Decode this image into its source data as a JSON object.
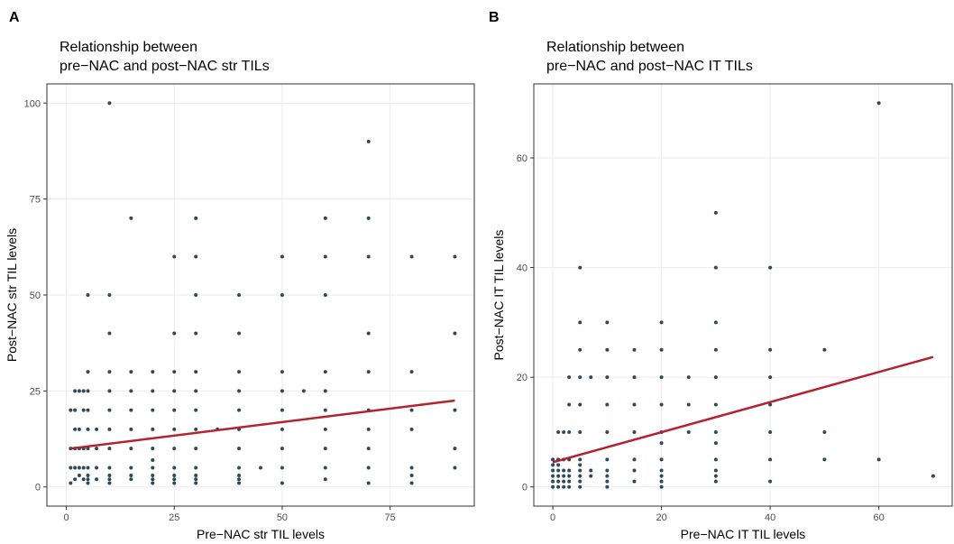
{
  "chart_data": [
    {
      "type": "scatter",
      "panel": "A",
      "title": [
        "Relationship between",
        "pre−NAC and post−NAC str TILs"
      ],
      "x_label": "Pre−NAC str TIL levels",
      "y_label": "Post−NAC str TIL levels",
      "color": "#2b4b5c",
      "grid": true,
      "xlim": [
        -4.5,
        94.5
      ],
      "ylim": [
        -5,
        105
      ],
      "xticks": [
        0,
        25,
        50,
        75
      ],
      "yticks": [
        0,
        25,
        50,
        75,
        100
      ],
      "x": [
        1,
        1,
        1,
        1,
        2,
        2,
        2,
        2,
        2,
        2,
        3,
        3,
        3,
        3,
        3,
        4,
        4,
        4,
        4,
        4,
        5,
        5,
        5,
        5,
        5,
        5,
        5,
        5,
        5,
        5,
        7,
        7,
        7,
        7,
        10,
        10,
        10,
        10,
        10,
        10,
        10,
        10,
        10,
        10,
        10,
        10,
        15,
        15,
        15,
        15,
        15,
        15,
        15,
        15,
        15,
        20,
        20,
        20,
        20,
        20,
        20,
        20,
        20,
        20,
        20,
        25,
        25,
        25,
        25,
        25,
        25,
        25,
        25,
        25,
        25,
        25,
        30,
        30,
        30,
        30,
        30,
        30,
        30,
        30,
        30,
        30,
        30,
        30,
        30,
        35,
        40,
        40,
        40,
        40,
        40,
        40,
        40,
        40,
        40,
        40,
        40,
        45,
        50,
        50,
        50,
        50,
        50,
        50,
        50,
        50,
        50,
        55,
        60,
        60,
        60,
        60,
        60,
        60,
        60,
        60,
        60,
        60,
        70,
        70,
        70,
        70,
        70,
        70,
        70,
        70,
        70,
        70,
        80,
        80,
        80,
        80,
        80,
        80,
        80,
        90,
        90,
        90,
        90,
        90
      ],
      "values": [
        1,
        5,
        10,
        20,
        2,
        5,
        10,
        15,
        20,
        25,
        3,
        5,
        10,
        15,
        25,
        2,
        5,
        10,
        20,
        25,
        1,
        2,
        3,
        5,
        10,
        15,
        20,
        25,
        30,
        50,
        2,
        5,
        10,
        15,
        1,
        2,
        3,
        5,
        10,
        15,
        20,
        25,
        30,
        40,
        50,
        100,
        2,
        3,
        5,
        10,
        15,
        20,
        25,
        30,
        70,
        1,
        2,
        3,
        5,
        7,
        10,
        15,
        20,
        25,
        30,
        1,
        2,
        3,
        5,
        10,
        15,
        20,
        25,
        30,
        40,
        60,
        1,
        2,
        3,
        5,
        10,
        15,
        20,
        25,
        30,
        40,
        50,
        60,
        70,
        15,
        1,
        2,
        3,
        5,
        10,
        15,
        20,
        25,
        30,
        40,
        50,
        5,
        1,
        5,
        10,
        15,
        20,
        25,
        30,
        50,
        60,
        25,
        2,
        5,
        10,
        15,
        20,
        25,
        30,
        50,
        60,
        70,
        1,
        5,
        10,
        15,
        20,
        30,
        40,
        60,
        70,
        90,
        1,
        3,
        5,
        15,
        20,
        30,
        60,
        5,
        10,
        20,
        40,
        60
      ],
      "trend": {
        "color": "#b5222f",
        "x": [
          1,
          90
        ],
        "y": [
          10,
          22.5
        ]
      }
    },
    {
      "type": "scatter",
      "panel": "B",
      "title": [
        "Relationship between",
        "pre−NAC and post−NAC IT TILs"
      ],
      "x_label": "Pre−NAC IT TIL levels",
      "y_label": "Post−NAC IT TIL levels",
      "color": "#2b4b5c",
      "grid": true,
      "xlim": [
        -3.5,
        73.5
      ],
      "ylim": [
        -3.5,
        73.5
      ],
      "xticks": [
        0,
        20,
        40,
        60
      ],
      "yticks": [
        0,
        20,
        40,
        60
      ],
      "x": [
        0,
        0,
        0,
        0,
        0,
        0,
        1,
        1,
        1,
        1,
        1,
        1,
        1,
        2,
        2,
        2,
        2,
        2,
        2,
        3,
        3,
        3,
        3,
        3,
        3,
        3,
        3,
        5,
        5,
        5,
        5,
        5,
        5,
        5,
        5,
        5,
        5,
        5,
        5,
        7,
        7,
        7,
        10,
        10,
        10,
        10,
        10,
        10,
        10,
        10,
        10,
        10,
        15,
        15,
        15,
        15,
        15,
        15,
        15,
        20,
        20,
        20,
        20,
        20,
        20,
        20,
        20,
        20,
        20,
        20,
        25,
        25,
        25,
        30,
        30,
        30,
        30,
        30,
        30,
        30,
        30,
        30,
        30,
        30,
        30,
        40,
        40,
        40,
        40,
        40,
        40,
        40,
        50,
        50,
        50,
        60,
        60,
        70
      ],
      "values": [
        0,
        1,
        2,
        3,
        4,
        5,
        0,
        1,
        2,
        3,
        4,
        5,
        10,
        0,
        1,
        2,
        3,
        5,
        10,
        0,
        1,
        2,
        3,
        5,
        10,
        15,
        20,
        0,
        1,
        2,
        3,
        4,
        5,
        10,
        15,
        20,
        25,
        30,
        40,
        2,
        3,
        20,
        0,
        1,
        2,
        3,
        5,
        10,
        15,
        20,
        25,
        30,
        1,
        3,
        5,
        10,
        15,
        20,
        25,
        0,
        1,
        2,
        3,
        5,
        8,
        10,
        15,
        20,
        25,
        30,
        10,
        15,
        20,
        1,
        2,
        3,
        5,
        8,
        10,
        15,
        20,
        25,
        30,
        40,
        50,
        1,
        5,
        10,
        15,
        20,
        25,
        40,
        5,
        10,
        25,
        5,
        70,
        2
      ],
      "trend": {
        "color": "#b5222f",
        "x": [
          0,
          70
        ],
        "y": [
          4.5,
          23.7
        ]
      }
    }
  ]
}
